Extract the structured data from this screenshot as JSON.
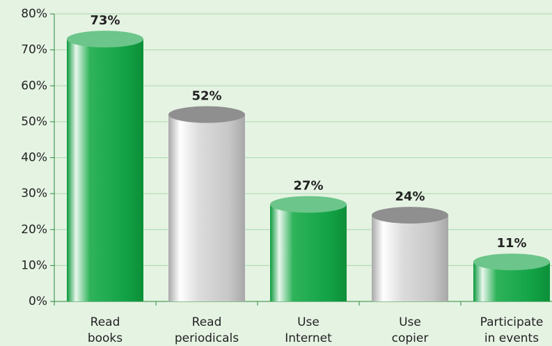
{
  "chart_data": {
    "type": "bar",
    "categories": [
      [
        "Read",
        "books"
      ],
      [
        "Read",
        "periodicals"
      ],
      [
        "Use",
        "Internet"
      ],
      [
        "Use",
        "copier"
      ],
      [
        "Participate",
        "in events"
      ]
    ],
    "values": [
      73,
      52,
      27,
      24,
      11
    ],
    "value_labels": [
      "73%",
      "52%",
      "27%",
      "24%",
      "11%"
    ],
    "colors": [
      "green",
      "gray",
      "green",
      "gray",
      "green"
    ],
    "ylim": [
      0,
      80
    ],
    "yticks": [
      {
        "value": 0,
        "label": "0%"
      },
      {
        "value": 10,
        "label": "10%"
      },
      {
        "value": 20,
        "label": "20%"
      },
      {
        "value": 30,
        "label": "30%"
      },
      {
        "value": 40,
        "label": "40%"
      },
      {
        "value": 50,
        "label": "50%"
      },
      {
        "value": 60,
        "label": "60%"
      },
      {
        "value": 70,
        "label": "70%"
      },
      {
        "value": 80,
        "label": "80%"
      }
    ],
    "grid": true
  }
}
